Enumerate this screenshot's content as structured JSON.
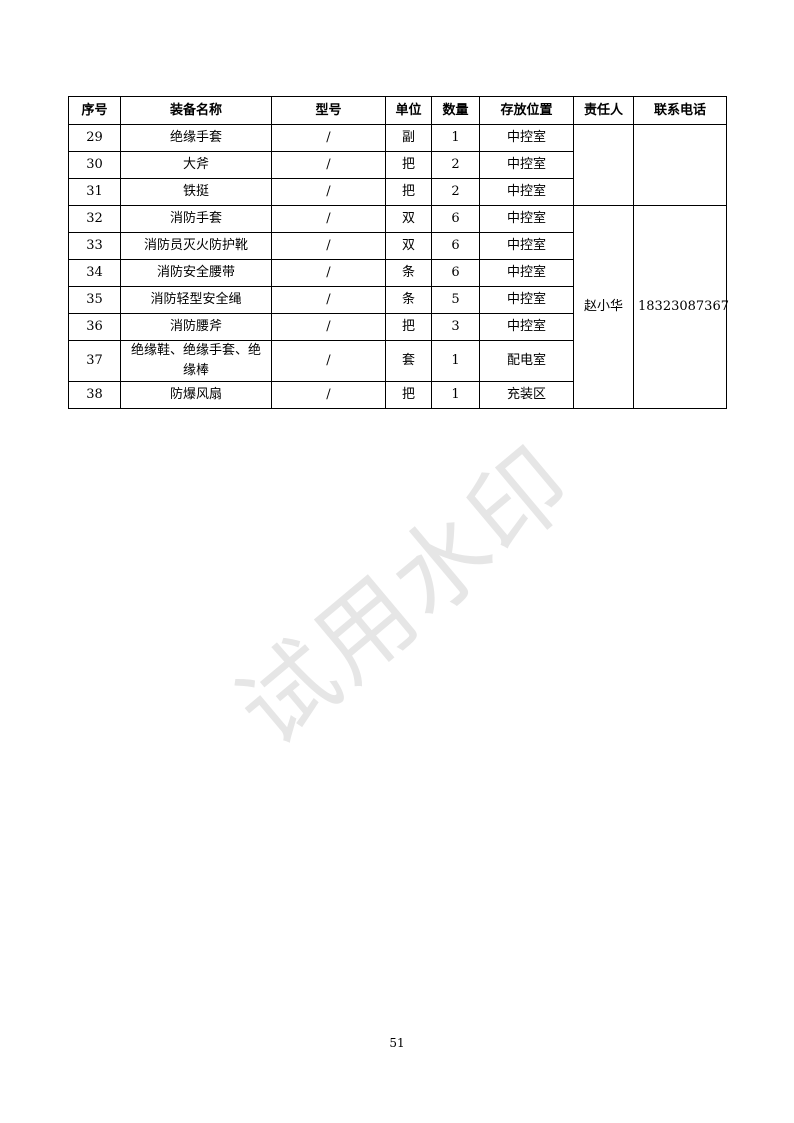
{
  "table": {
    "headers": [
      "序号",
      "装备名称",
      "型号",
      "单位",
      "数量",
      "存放位置",
      "责任人",
      "联系电话"
    ],
    "rows": [
      {
        "no": "29",
        "name": "绝缘手套",
        "model": "/",
        "unit": "副",
        "qty": "1",
        "location": "中控室"
      },
      {
        "no": "30",
        "name": "大斧",
        "model": "/",
        "unit": "把",
        "qty": "2",
        "location": "中控室"
      },
      {
        "no": "31",
        "name": "铁挺",
        "model": "/",
        "unit": "把",
        "qty": "2",
        "location": "中控室"
      },
      {
        "no": "32",
        "name": "消防手套",
        "model": "/",
        "unit": "双",
        "qty": "6",
        "location": "中控室"
      },
      {
        "no": "33",
        "name": "消防员灭火防护靴",
        "model": "/",
        "unit": "双",
        "qty": "6",
        "location": "中控室"
      },
      {
        "no": "34",
        "name": "消防安全腰带",
        "model": "/",
        "unit": "条",
        "qty": "6",
        "location": "中控室"
      },
      {
        "no": "35",
        "name": "消防轻型安全绳",
        "model": "/",
        "unit": "条",
        "qty": "5",
        "location": "中控室"
      },
      {
        "no": "36",
        "name": "消防腰斧",
        "model": "/",
        "unit": "把",
        "qty": "3",
        "location": "中控室"
      },
      {
        "no": "37",
        "name": "绝缘鞋、绝缘手套、绝缘棒",
        "model": "/",
        "unit": "套",
        "qty": "1",
        "location": "配电室"
      },
      {
        "no": "38",
        "name": "防爆风扇",
        "model": "/",
        "unit": "把",
        "qty": "1",
        "location": "充装区"
      }
    ],
    "group1": {
      "person": "",
      "phone": ""
    },
    "group2": {
      "person": "赵小华",
      "phone": "18323087367"
    }
  },
  "watermark": "试用水印",
  "page_number": "51"
}
